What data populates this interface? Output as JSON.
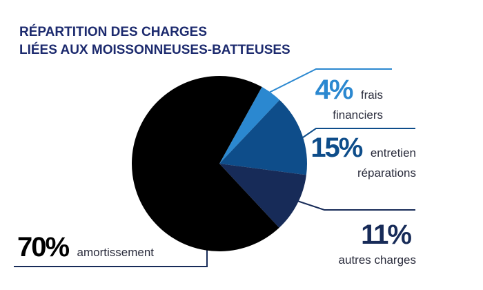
{
  "chart_data": {
    "type": "pie",
    "title": [
      "RÉPARTITION DES CHARGES",
      "LIÉES AUX MOISSONNEUSES-BATTEUSES"
    ],
    "categories": [
      "frais financiers",
      "entretien réparations",
      "autres charges",
      "amortissement"
    ],
    "values": [
      4,
      15,
      11,
      70
    ],
    "value_labels": [
      "4%",
      "15%",
      "11%",
      "70%"
    ],
    "colors": [
      "#2b88d0",
      "#0e4d8a",
      "#172b58",
      "#000000"
    ]
  }
}
